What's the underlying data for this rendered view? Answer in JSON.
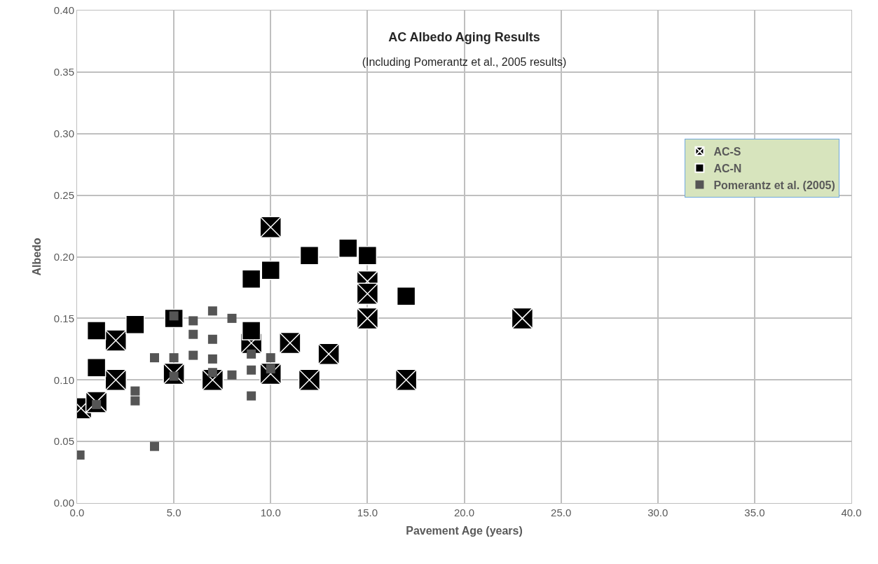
{
  "chart_data": {
    "type": "scatter",
    "title": "AC Albedo Aging Results",
    "subtitle": "(Including Pomerantz et al., 2005 results)",
    "xlabel": "Pavement Age (years)",
    "ylabel": "Albedo",
    "xlim": [
      0,
      40
    ],
    "xticks": [
      {
        "value": 0,
        "label": "0.0"
      },
      {
        "value": 5,
        "label": "5.0"
      },
      {
        "value": 10,
        "label": "10.0"
      },
      {
        "value": 15,
        "label": "15.0"
      },
      {
        "value": 20,
        "label": "20.0"
      },
      {
        "value": 25,
        "label": "25.0"
      },
      {
        "value": 30,
        "label": "30.0"
      },
      {
        "value": 35,
        "label": "35.0"
      },
      {
        "value": 40,
        "label": "40.0"
      }
    ],
    "ylim": [
      0,
      0.4
    ],
    "yticks": [
      {
        "value": 0,
        "label": "0.00"
      },
      {
        "value": 0.05,
        "label": "0.05"
      },
      {
        "value": 0.1,
        "label": "0.10"
      },
      {
        "value": 0.15,
        "label": "0.15"
      },
      {
        "value": 0.2,
        "label": "0.20"
      },
      {
        "value": 0.25,
        "label": "0.25"
      },
      {
        "value": 0.3,
        "label": "0.30"
      },
      {
        "value": 0.35,
        "label": "0.35"
      },
      {
        "value": 0.4,
        "label": "0.40"
      }
    ],
    "grid": true,
    "legend": "right",
    "series": [
      {
        "name": "AC-S",
        "color": "#000000",
        "marker": "cross",
        "x": [
          0.2,
          1,
          2,
          2,
          5,
          7,
          9,
          10,
          10,
          11,
          12,
          13,
          15,
          15,
          15,
          17,
          23
        ],
        "values": [
          0.077,
          0.082,
          0.132,
          0.1,
          0.105,
          0.1,
          0.13,
          0.224,
          0.105,
          0.13,
          0.1,
          0.121,
          0.18,
          0.17,
          0.15,
          0.1,
          0.15
        ]
      },
      {
        "name": "AC-N",
        "color": "#000000",
        "marker": "square",
        "x": [
          1,
          1,
          3,
          5,
          9,
          9,
          10,
          12,
          14,
          15,
          17
        ],
        "values": [
          0.14,
          0.11,
          0.145,
          0.15,
          0.182,
          0.14,
          0.189,
          0.201,
          0.207,
          0.201,
          0.168
        ]
      },
      {
        "name": "Pomerantz et al. (2005)",
        "color": "#555555",
        "marker": "square",
        "x": [
          0.15,
          4,
          1,
          3,
          3,
          4,
          5,
          5,
          5,
          6,
          6,
          6,
          7,
          7,
          7,
          7,
          8,
          8,
          9,
          9,
          9,
          10,
          10
        ],
        "values": [
          0.039,
          0.046,
          0.08,
          0.091,
          0.083,
          0.118,
          0.118,
          0.103,
          0.152,
          0.148,
          0.137,
          0.12,
          0.156,
          0.133,
          0.117,
          0.106,
          0.15,
          0.104,
          0.121,
          0.108,
          0.087,
          0.118,
          0.109
        ]
      }
    ]
  }
}
